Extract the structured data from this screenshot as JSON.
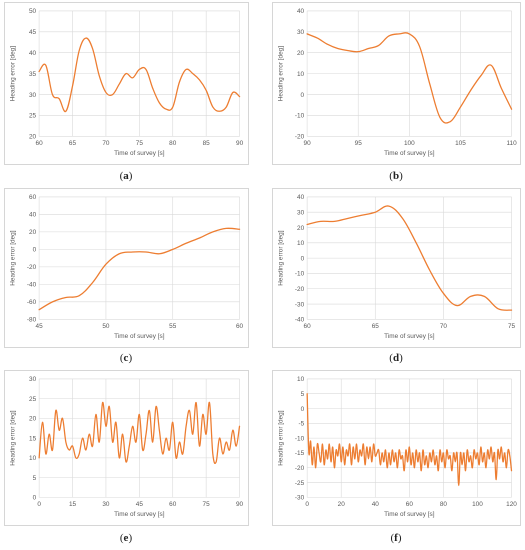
{
  "colors": {
    "line": "#ed7d31",
    "grid": "#d9d9d9",
    "text": "#595959"
  },
  "chart_data": [
    {
      "panel": "a",
      "type": "line",
      "xlabel": "Time of survey [s]",
      "ylabel": "Heading error [deg]",
      "xlim": [
        60,
        90
      ],
      "ylim": [
        20,
        50
      ],
      "xticks": [
        60,
        65,
        70,
        75,
        80,
        85,
        90
      ],
      "yticks": [
        20,
        25,
        30,
        35,
        40,
        45,
        50
      ],
      "x": [
        60,
        61,
        62,
        63,
        64,
        65,
        66,
        67,
        68,
        69,
        70,
        71,
        72,
        73,
        74,
        75,
        76,
        77,
        78,
        79,
        80,
        81,
        82,
        83,
        84,
        85,
        86,
        87,
        88,
        89,
        90
      ],
      "y": [
        35.5,
        37,
        30,
        29,
        26,
        32,
        40.5,
        43.5,
        41,
        34.5,
        30.5,
        30,
        32.5,
        35,
        34,
        36,
        36,
        31.5,
        28,
        26.5,
        27,
        33,
        36,
        35,
        33.5,
        31,
        27,
        26,
        27,
        30.5,
        29.5
      ]
    },
    {
      "panel": "b",
      "type": "line",
      "xlabel": "Time of survey [s]",
      "ylabel": "Heading error [deg]",
      "xlim": [
        90,
        110
      ],
      "ylim": [
        -20,
        40
      ],
      "xticks": [
        90,
        95,
        100,
        105,
        110
      ],
      "yticks": [
        -20,
        -10,
        0,
        10,
        20,
        30,
        40
      ],
      "x": [
        90,
        91,
        92,
        93,
        94,
        95,
        96,
        97,
        98,
        99,
        100,
        101,
        102,
        103,
        104,
        105,
        106,
        107,
        108,
        109,
        110
      ],
      "y": [
        29,
        27,
        24,
        22,
        21,
        20.5,
        22,
        23.5,
        28,
        29,
        29,
        23,
        5,
        -11,
        -13,
        -6,
        2,
        9,
        14,
        3,
        -7
      ]
    },
    {
      "panel": "c",
      "type": "line",
      "xlabel": "Time of survey [s]",
      "ylabel": "Heading error [deg]",
      "xlim": [
        45,
        60
      ],
      "ylim": [
        -80,
        60
      ],
      "xticks": [
        45,
        50,
        55,
        60
      ],
      "yticks": [
        -80,
        -60,
        -40,
        -20,
        0,
        20,
        40,
        60
      ],
      "x": [
        45,
        46,
        47,
        48,
        49,
        50,
        51,
        52,
        53,
        54,
        55,
        56,
        57,
        58,
        59,
        60
      ],
      "y": [
        -69,
        -60,
        -55,
        -53,
        -38,
        -17,
        -5,
        -3,
        -3,
        -5,
        0,
        7,
        13,
        20,
        24,
        23
      ]
    },
    {
      "panel": "d",
      "type": "line",
      "xlabel": "Time of survey [s]",
      "ylabel": "Heading error [deg]",
      "xlim": [
        60,
        75
      ],
      "ylim": [
        -40,
        40
      ],
      "xticks": [
        60,
        65,
        70,
        75
      ],
      "yticks": [
        -40,
        -30,
        -20,
        -10,
        0,
        10,
        20,
        30,
        40
      ],
      "x": [
        60,
        61,
        62,
        63,
        64,
        65,
        66,
        67,
        68,
        69,
        70,
        71,
        72,
        73,
        74,
        75
      ],
      "y": [
        22,
        24,
        24,
        26,
        28,
        30,
        34,
        26,
        10,
        -8,
        -23,
        -31,
        -25,
        -25,
        -33,
        -34
      ]
    },
    {
      "panel": "e",
      "type": "line",
      "xlabel": "Time of survey [s]",
      "ylabel": "Heading error [deg]",
      "xlim": [
        0,
        90
      ],
      "ylim": [
        0,
        30
      ],
      "xticks": [
        0,
        15,
        30,
        45,
        60,
        75,
        90
      ],
      "yticks": [
        0,
        5,
        10,
        15,
        20,
        25,
        30
      ],
      "x": [
        0,
        1.5,
        3,
        4.5,
        6,
        7.5,
        9,
        10.5,
        12,
        13.5,
        15,
        16.5,
        18,
        19.5,
        21,
        22.5,
        24,
        25.5,
        27,
        28.5,
        30,
        31.5,
        33,
        34.5,
        36,
        37.5,
        39,
        40.5,
        42,
        43.5,
        45,
        46.5,
        48,
        49.5,
        51,
        52.5,
        54,
        55.5,
        57,
        58.5,
        60,
        61.5,
        63,
        64.5,
        66,
        67.5,
        69,
        70.5,
        72,
        73.5,
        75,
        76.5,
        78,
        79.5,
        81,
        82.5,
        84,
        85.5,
        87,
        88.5,
        90
      ],
      "y": [
        10,
        19,
        11,
        16,
        12,
        22,
        17,
        20,
        14,
        12,
        13,
        10,
        11,
        15,
        12,
        16,
        13,
        21,
        14,
        24,
        18,
        23,
        14,
        19,
        10,
        16,
        9,
        13,
        18,
        14,
        21,
        12,
        16,
        22,
        14,
        23,
        17,
        11,
        15,
        12,
        19,
        10,
        14,
        11,
        18,
        22,
        16,
        24,
        13,
        21,
        16,
        24,
        11,
        9,
        15,
        11,
        14,
        12,
        17,
        13,
        18
      ]
    },
    {
      "panel": "f",
      "type": "line",
      "xlabel": "Time of survey [s]",
      "ylabel": "Heading error [deg]",
      "xlim": [
        0,
        120
      ],
      "ylim": [
        -30,
        10
      ],
      "xticks": [
        0,
        20,
        40,
        60,
        80,
        100,
        120
      ],
      "yticks": [
        -30,
        -25,
        -20,
        -15,
        -10,
        -5,
        0,
        5,
        10
      ],
      "x": [
        0,
        1,
        2,
        3,
        4,
        5,
        6,
        7,
        8,
        9,
        10,
        11,
        12,
        13,
        14,
        15,
        16,
        17,
        18,
        19,
        20,
        21,
        22,
        23,
        24,
        25,
        26,
        27,
        28,
        29,
        30,
        31,
        32,
        33,
        34,
        35,
        36,
        37,
        38,
        39,
        40,
        41,
        42,
        43,
        44,
        45,
        46,
        47,
        48,
        49,
        50,
        51,
        52,
        53,
        54,
        55,
        56,
        57,
        58,
        59,
        60,
        61,
        62,
        63,
        64,
        65,
        66,
        67,
        68,
        69,
        70,
        71,
        72,
        73,
        74,
        75,
        76,
        77,
        78,
        79,
        80,
        81,
        82,
        83,
        84,
        85,
        86,
        87,
        88,
        89,
        90,
        91,
        92,
        93,
        94,
        95,
        96,
        97,
        98,
        99,
        100,
        101,
        102,
        103,
        104,
        105,
        106,
        107,
        108,
        109,
        110,
        111,
        112,
        113,
        114,
        115,
        116,
        117,
        118,
        119,
        120
      ],
      "y": [
        5,
        -15,
        -11,
        -19,
        -13,
        -20,
        -12,
        -15,
        -18,
        -12,
        -19,
        -14,
        -17,
        -12,
        -18,
        -13,
        -20,
        -14,
        -16,
        -12,
        -18,
        -13,
        -19,
        -14,
        -16,
        -12,
        -19,
        -13,
        -17,
        -12,
        -18,
        -14,
        -16,
        -12,
        -19,
        -13,
        -17,
        -13,
        -18,
        -12,
        -16,
        -15,
        -14,
        -19,
        -15,
        -18,
        -14,
        -20,
        -15,
        -19,
        -14,
        -18,
        -15,
        -20,
        -14,
        -17,
        -16,
        -21,
        -14,
        -18,
        -13,
        -19,
        -15,
        -20,
        -14,
        -18,
        -15,
        -21,
        -14,
        -19,
        -16,
        -20,
        -15,
        -18,
        -14,
        -19,
        -16,
        -21,
        -14,
        -18,
        -15,
        -20,
        -14,
        -17,
        -16,
        -21,
        -15,
        -18,
        -15,
        -26,
        -15,
        -19,
        -15,
        -21,
        -14,
        -18,
        -16,
        -20,
        -14,
        -17,
        -15,
        -19,
        -13,
        -18,
        -15,
        -20,
        -14,
        -17,
        -13,
        -18,
        -15,
        -24,
        -14,
        -17,
        -13,
        -18,
        -15,
        -20,
        -14,
        -16,
        -21
      ]
    }
  ],
  "panels": [
    {
      "label": "a"
    },
    {
      "label": "b"
    },
    {
      "label": "c"
    },
    {
      "label": "d"
    },
    {
      "label": "e"
    },
    {
      "label": "f"
    }
  ]
}
